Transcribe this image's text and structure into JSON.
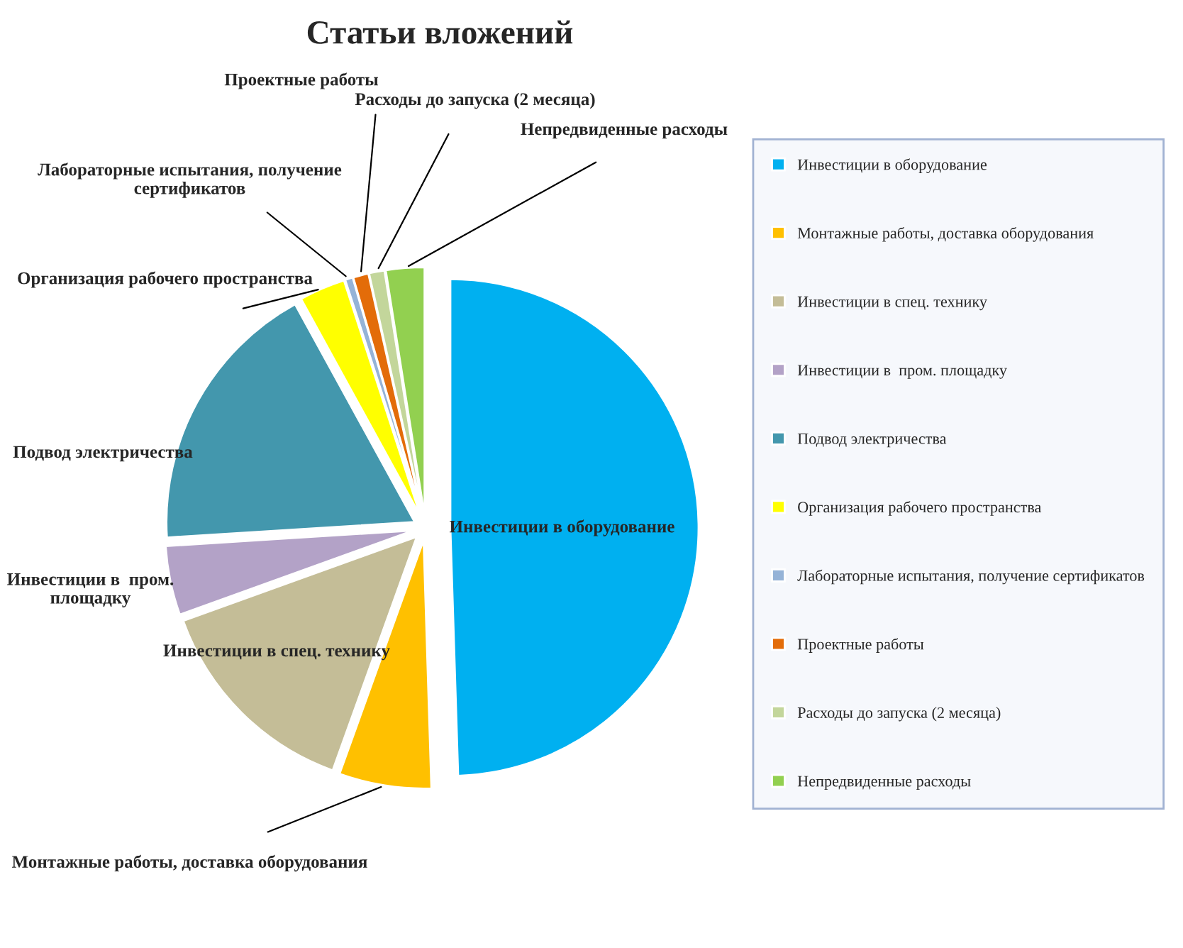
{
  "chart_data": {
    "type": "pie",
    "title": "Статьи вложений",
    "categories": [
      "Инвестиции в оборудование",
      "Монтажные работы, доставка оборудования",
      "Инвестиции в спец. технику",
      "Инвестиции в  пром. площадку",
      "Подвод электричества",
      "Организация рабочего пространства",
      "Лабораторные испытания, получение сертификатов",
      "Проектные работы",
      "Расходы до запуска (2 месяца)",
      "Непредвиденные расходы"
    ],
    "values": [
      49.5,
      6,
      14,
      4.5,
      18,
      3,
      0.5,
      1,
      1,
      2.5
    ],
    "colors": [
      "#00b0f0",
      "#ffc000",
      "#c4bd97",
      "#b3a2c7",
      "#4397ad",
      "#ffff00",
      "#95b3d7",
      "#e36c09",
      "#c3d69b",
      "#92d050"
    ],
    "legend": "right"
  }
}
